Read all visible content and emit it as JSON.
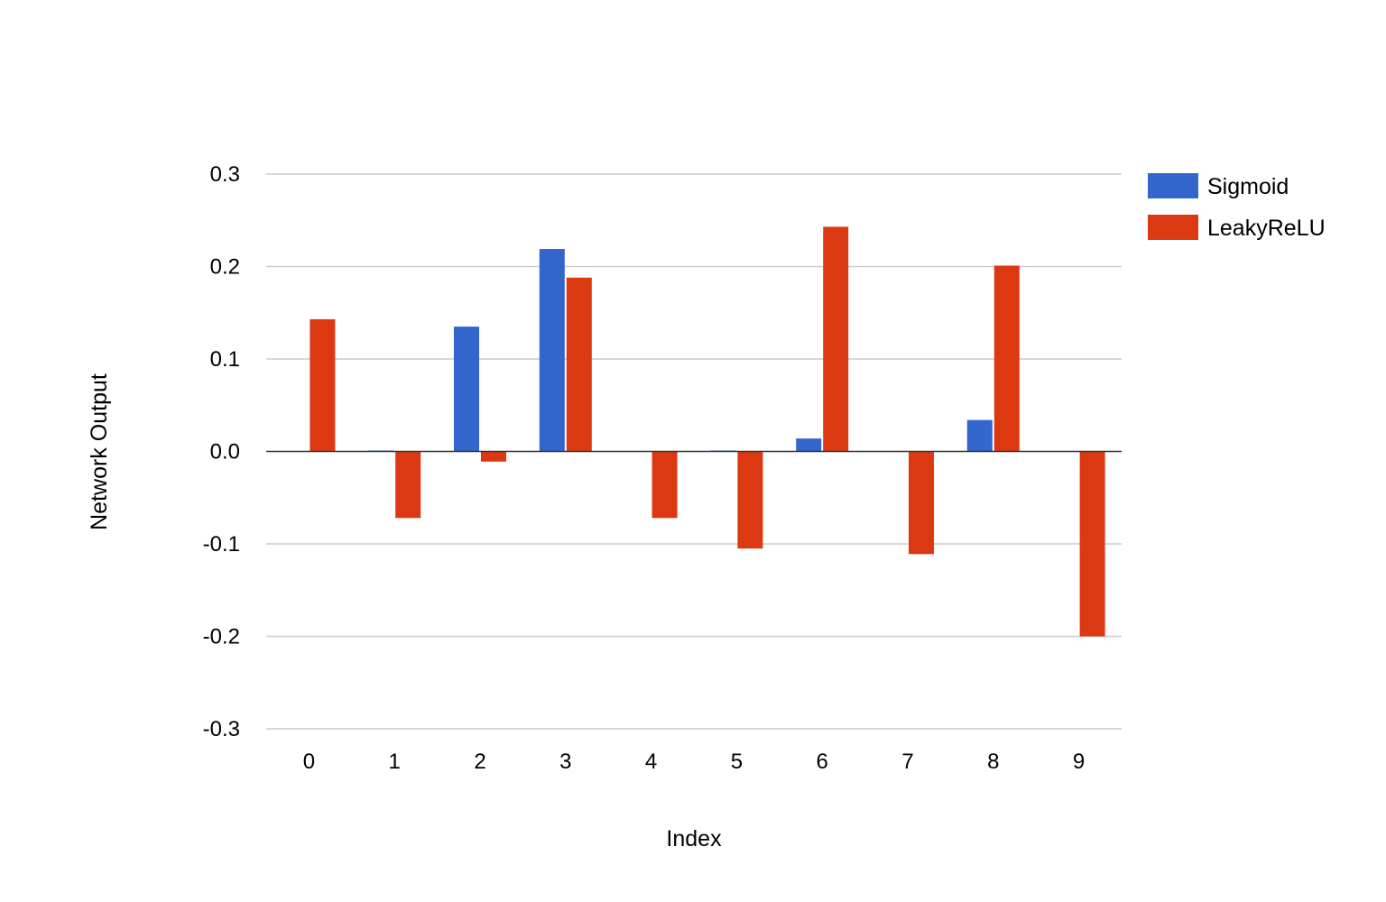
{
  "chart_data": {
    "type": "bar",
    "title": "",
    "xlabel": "Index",
    "ylabel": "Network Output",
    "categories": [
      "0",
      "1",
      "2",
      "3",
      "4",
      "5",
      "6",
      "7",
      "8",
      "9"
    ],
    "series": [
      {
        "name": "Sigmoid",
        "color": "#3366cc",
        "values": [
          0.0,
          0.0005,
          0.135,
          0.219,
          0.0,
          0.0005,
          0.014,
          0.0,
          0.034,
          0.0
        ]
      },
      {
        "name": "LeakyReLU",
        "color": "#dc3912",
        "values": [
          0.143,
          -0.072,
          -0.011,
          0.188,
          -0.072,
          -0.105,
          0.243,
          -0.111,
          0.201,
          -0.2
        ]
      }
    ],
    "ylim": [
      -0.3,
      0.3
    ],
    "yticks": [
      "0.3",
      "0.2",
      "0.1",
      "0.0",
      "-0.1",
      "-0.2",
      "-0.3"
    ],
    "ytick_values": [
      0.3,
      0.2,
      0.1,
      0.0,
      -0.1,
      -0.2,
      -0.3
    ],
    "grid": true,
    "legend_position": "right"
  }
}
